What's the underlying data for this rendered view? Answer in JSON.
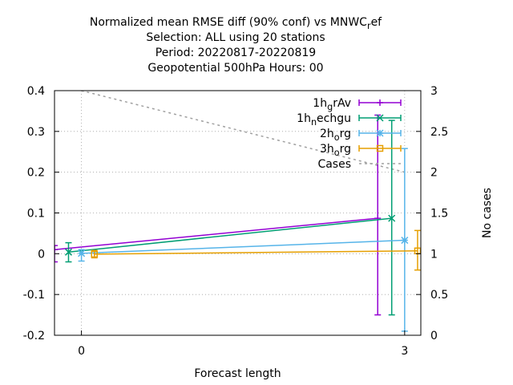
{
  "chart_data": {
    "type": "line",
    "title_lines": [
      {
        "pre": "Normalized mean RMSE diff (90% conf) vs MNWC",
        "sub": "r",
        "post": "ef"
      },
      {
        "pre": "Selection: ALL using    20 stations",
        "sub": "",
        "post": ""
      },
      {
        "pre": "Period: 20220817-20220819",
        "sub": "",
        "post": ""
      },
      {
        "pre": "Geopotential 500hPa   Hours:  00",
        "sub": "",
        "post": ""
      }
    ],
    "xlabel": "Forecast length",
    "ylabel": "",
    "y2label": "No cases",
    "xlim": [
      -0.25,
      3.15
    ],
    "ylim": [
      -0.2,
      0.4
    ],
    "y2lim": [
      0,
      3
    ],
    "xticks": [
      0,
      3
    ],
    "yticks": [
      -0.2,
      -0.1,
      0,
      0.1,
      0.2,
      0.3,
      0.4
    ],
    "y2ticks": [
      0,
      0.5,
      1,
      1.5,
      2,
      2.5,
      3
    ],
    "grid": true,
    "legend_position": "top-right",
    "series": [
      {
        "name": {
          "pre": "1h",
          "sub": "g",
          "post": "rAv"
        },
        "color": "#9400d3",
        "marker": "plus",
        "points": [
          {
            "x": -0.25,
            "y": 0.01,
            "lo": -0.02,
            "hi": 0.02
          },
          {
            "x": 2.75,
            "y": 0.087,
            "lo": -0.15,
            "hi": 0.34
          }
        ]
      },
      {
        "name": {
          "pre": "1h",
          "sub": "n",
          "post": "echgu"
        },
        "color": "#009e73",
        "marker": "cross",
        "points": [
          {
            "x": -0.12,
            "y": 0.004,
            "lo": -0.02,
            "hi": 0.027
          },
          {
            "x": 2.88,
            "y": 0.087,
            "lo": -0.15,
            "hi": 0.327
          }
        ]
      },
      {
        "name": {
          "pre": "2h",
          "sub": "o",
          "post": "rg"
        },
        "color": "#56b4e9",
        "marker": "star",
        "points": [
          {
            "x": 0.0,
            "y": 0.001,
            "lo": -0.018,
            "hi": 0.01
          },
          {
            "x": 3.0,
            "y": 0.033,
            "lo": -0.19,
            "hi": 0.258
          }
        ]
      },
      {
        "name": {
          "pre": "3h",
          "sub": "o",
          "post": "rg"
        },
        "color": "#e69f00",
        "marker": "square",
        "points": [
          {
            "x": 0.12,
            "y": -0.001,
            "lo": -0.01,
            "hi": 0.008
          },
          {
            "x": 3.12,
            "y": 0.007,
            "lo": -0.04,
            "hi": 0.057
          }
        ]
      }
    ],
    "cases": {
      "name": "Cases",
      "color": "#a0a0a0",
      "x": [
        0,
        3
      ],
      "y": [
        3,
        2
      ]
    }
  }
}
